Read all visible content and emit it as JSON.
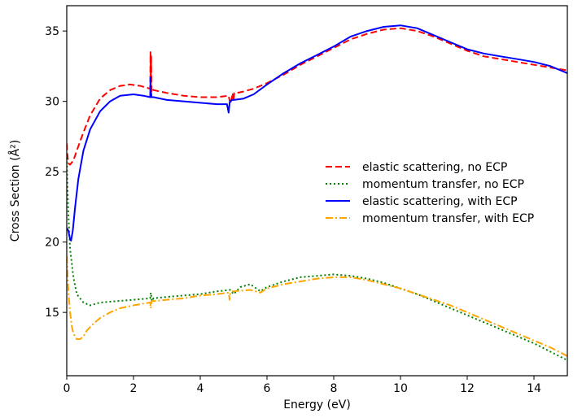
{
  "chart_data": {
    "type": "line",
    "title": "",
    "xlabel": "Energy (eV)",
    "ylabel": "Cross Section (Å²)",
    "xlim": [
      0,
      15
    ],
    "ylim": [
      10.5,
      36.8
    ],
    "xticks": [
      0,
      2,
      4,
      6,
      8,
      10,
      12,
      14
    ],
    "xtick_labels": [
      "0",
      "2",
      "4",
      "6",
      "8",
      "10",
      "12",
      "14"
    ],
    "yticks": [
      15,
      20,
      25,
      30,
      35
    ],
    "ytick_labels": [
      "15",
      "20",
      "25",
      "30",
      "35"
    ],
    "grid": false,
    "legend_position": "center-right",
    "series": [
      {
        "name": "elastic scattering, no ECP",
        "color": "#ff0000",
        "linestyle": "dashed",
        "x": [
          0.0,
          0.02,
          0.05,
          0.1,
          0.2,
          0.3,
          0.5,
          0.7,
          1.0,
          1.3,
          1.6,
          1.9,
          2.2,
          2.5,
          2.51,
          2.52,
          2.53,
          2.54,
          2.55,
          2.6,
          3.0,
          3.5,
          4.0,
          4.5,
          4.85,
          4.9,
          4.95,
          4.97,
          5.0,
          5.02,
          5.05,
          5.1,
          5.3,
          5.6,
          6.0,
          6.5,
          7.0,
          7.5,
          8.0,
          8.5,
          9.0,
          9.5,
          10.0,
          10.5,
          11.0,
          11.5,
          12.0,
          12.5,
          13.0,
          13.5,
          14.0,
          14.5,
          15.0
        ],
        "y": [
          27.0,
          26.2,
          25.6,
          25.5,
          25.8,
          26.5,
          27.8,
          29.0,
          30.2,
          30.8,
          31.1,
          31.2,
          31.1,
          30.9,
          33.5,
          30.6,
          33.2,
          30.7,
          30.9,
          30.8,
          30.6,
          30.4,
          30.3,
          30.3,
          30.4,
          29.8,
          30.3,
          30.6,
          30.0,
          30.6,
          30.6,
          30.6,
          30.7,
          30.9,
          31.3,
          31.9,
          32.6,
          33.2,
          33.8,
          34.4,
          34.8,
          35.1,
          35.2,
          35.0,
          34.6,
          34.1,
          33.6,
          33.2,
          33.0,
          32.8,
          32.6,
          32.4,
          32.2
        ]
      },
      {
        "name": "momentum transfer, no ECP",
        "color": "#008000",
        "linestyle": "dotted",
        "x": [
          0.0,
          0.02,
          0.05,
          0.1,
          0.2,
          0.3,
          0.5,
          0.7,
          1.0,
          1.5,
          2.0,
          2.5,
          2.52,
          2.55,
          2.6,
          3.0,
          3.5,
          4.0,
          4.5,
          4.9,
          5.0,
          5.2,
          5.5,
          5.8,
          6.0,
          6.5,
          7.0,
          7.5,
          8.0,
          8.5,
          9.0,
          9.5,
          10.0,
          10.5,
          11.0,
          11.5,
          12.0,
          12.5,
          13.0,
          13.5,
          14.0,
          14.5,
          15.0
        ],
        "y": [
          26.0,
          24.0,
          22.0,
          19.5,
          17.5,
          16.3,
          15.7,
          15.5,
          15.7,
          15.8,
          15.9,
          16.0,
          16.4,
          15.8,
          16.0,
          16.1,
          16.2,
          16.3,
          16.5,
          16.6,
          16.3,
          16.8,
          17.0,
          16.5,
          16.8,
          17.2,
          17.5,
          17.6,
          17.7,
          17.6,
          17.4,
          17.1,
          16.7,
          16.3,
          15.8,
          15.3,
          14.8,
          14.3,
          13.8,
          13.3,
          12.8,
          12.2,
          11.6
        ]
      },
      {
        "name": "elastic scattering, with ECP",
        "color": "#0000ff",
        "linestyle": "solid",
        "x": [
          0.0,
          0.05,
          0.1,
          0.13,
          0.18,
          0.25,
          0.35,
          0.5,
          0.7,
          1.0,
          1.3,
          1.6,
          2.0,
          2.3,
          2.5,
          2.51,
          2.52,
          2.53,
          2.54,
          2.6,
          3.0,
          3.5,
          4.0,
          4.5,
          4.8,
          4.85,
          4.88,
          4.9,
          4.95,
          5.0,
          5.3,
          5.6,
          6.0,
          6.5,
          7.0,
          7.5,
          8.0,
          8.5,
          9.0,
          9.5,
          10.0,
          10.5,
          11.0,
          11.5,
          12.0,
          12.5,
          13.0,
          13.5,
          14.0,
          14.5,
          15.0
        ],
        "y": [
          21.0,
          20.8,
          20.2,
          20.1,
          20.8,
          22.5,
          24.5,
          26.5,
          28.0,
          29.3,
          30.0,
          30.4,
          30.5,
          30.4,
          30.3,
          31.7,
          30.3,
          30.6,
          30.3,
          30.3,
          30.1,
          30.0,
          29.9,
          29.8,
          29.8,
          29.2,
          29.9,
          30.0,
          30.1,
          30.1,
          30.2,
          30.5,
          31.2,
          32.0,
          32.7,
          33.3,
          33.9,
          34.6,
          35.0,
          35.3,
          35.4,
          35.2,
          34.7,
          34.2,
          33.7,
          33.4,
          33.2,
          33.0,
          32.8,
          32.5,
          32.0
        ]
      },
      {
        "name": "momentum transfer, with ECP",
        "color": "#ffa500",
        "linestyle": "dashdot",
        "x": [
          0.0,
          0.03,
          0.05,
          0.1,
          0.15,
          0.2,
          0.3,
          0.4,
          0.5,
          0.6,
          0.8,
          1.0,
          1.3,
          1.6,
          2.0,
          2.5,
          2.52,
          2.54,
          2.6,
          3.0,
          3.5,
          4.0,
          4.5,
          4.85,
          4.88,
          4.9,
          4.95,
          5.0,
          5.5,
          5.8,
          6.0,
          6.5,
          7.0,
          7.5,
          8.0,
          8.5,
          9.0,
          9.5,
          10.0,
          10.5,
          11.0,
          11.5,
          12.0,
          12.5,
          13.0,
          13.5,
          14.0,
          14.5,
          15.0
        ],
        "y": [
          19.0,
          17.5,
          16.5,
          15.0,
          14.0,
          13.5,
          13.1,
          13.1,
          13.3,
          13.7,
          14.2,
          14.6,
          15.0,
          15.3,
          15.5,
          15.7,
          15.3,
          15.8,
          15.8,
          15.9,
          16.0,
          16.2,
          16.3,
          16.4,
          15.9,
          16.4,
          16.5,
          16.5,
          16.6,
          16.4,
          16.7,
          17.0,
          17.2,
          17.4,
          17.5,
          17.5,
          17.3,
          17.0,
          16.7,
          16.3,
          15.9,
          15.5,
          15.0,
          14.5,
          14.0,
          13.5,
          13.0,
          12.5,
          11.9
        ]
      }
    ]
  }
}
